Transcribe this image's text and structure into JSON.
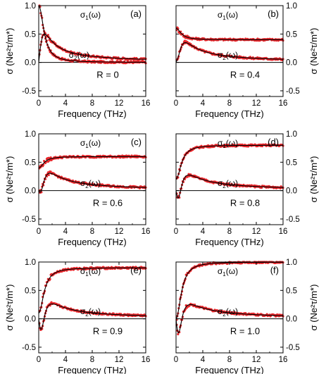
{
  "colors": {
    "data_points": "#e8262b",
    "fit_line": "#000000",
    "axes": "#000000"
  },
  "shared_axes": {
    "xlabel": "Frequency (THz)",
    "ylabel": "σ (Ne²τ/m*)",
    "xlim": [
      0,
      16
    ],
    "ylim": [
      -0.6,
      1.0
    ],
    "xticks": [
      "0",
      "4",
      "8",
      "12",
      "16"
    ],
    "yticks": [
      "-0.5",
      "0.0",
      "0.5",
      "1.0"
    ]
  },
  "chart_data": [
    {
      "type": "line",
      "panel": "(a)",
      "annotation": "R = 0",
      "R": 0.0,
      "series": [
        {
          "name": "σ1(ω)",
          "label_main": "σ",
          "label_sub": "1",
          "label_rest": "(ω)",
          "style": "fit line + red data points"
        },
        {
          "name": "σ2(ω)",
          "label_main": "σ",
          "label_sub": "2",
          "label_rest": "(ω)",
          "style": "fit line + red data points"
        }
      ]
    },
    {
      "type": "line",
      "panel": "(b)",
      "annotation": "R = 0.4",
      "R": 0.4,
      "series": [
        {
          "name": "σ1(ω)",
          "label_main": "σ",
          "label_sub": "1",
          "label_rest": "(ω)",
          "style": "fit line + red data points"
        },
        {
          "name": "σ2(ω)",
          "label_main": "σ",
          "label_sub": "2",
          "label_rest": "(ω)",
          "style": "fit line + red data points"
        }
      ]
    },
    {
      "type": "line",
      "panel": "(c)",
      "annotation": "R = 0.6",
      "R": 0.6,
      "series": [
        {
          "name": "σ1(ω)",
          "label_main": "σ",
          "label_sub": "1",
          "label_rest": "(ω)",
          "style": "fit line + red data points"
        },
        {
          "name": "σ2(ω)",
          "label_main": "σ",
          "label_sub": "2",
          "label_rest": "(ω)",
          "style": "fit line + red data points"
        }
      ]
    },
    {
      "type": "line",
      "panel": "(d)",
      "annotation": "R = 0.8",
      "R": 0.8,
      "series": [
        {
          "name": "σ1(ω)",
          "label_main": "σ",
          "label_sub": "1",
          "label_rest": "(ω)",
          "style": "fit line + red data points"
        },
        {
          "name": "σ2(ω)",
          "label_main": "σ",
          "label_sub": "2",
          "label_rest": "(ω)",
          "style": "fit line + red data points"
        }
      ]
    },
    {
      "type": "line",
      "panel": "(e)",
      "annotation": "R = 0.9",
      "R": 0.9,
      "series": [
        {
          "name": "σ1(ω)",
          "label_main": "σ",
          "label_sub": "1",
          "label_rest": "(ω)",
          "style": "fit line + red data points"
        },
        {
          "name": "σ2(ω)",
          "label_main": "σ",
          "label_sub": "2",
          "label_rest": "(ω)",
          "style": "fit line + red data points"
        }
      ]
    },
    {
      "type": "line",
      "panel": "(f)",
      "annotation": "R = 1.0",
      "R": 1.0,
      "series": [
        {
          "name": "σ1(ω)",
          "label_main": "σ",
          "label_sub": "1",
          "label_rest": "(ω)",
          "style": "fit line + red data points"
        },
        {
          "name": "σ2(ω)",
          "label_main": "σ",
          "label_sub": "2",
          "label_rest": "(ω)",
          "style": "fit line + red data points"
        }
      ]
    }
  ]
}
